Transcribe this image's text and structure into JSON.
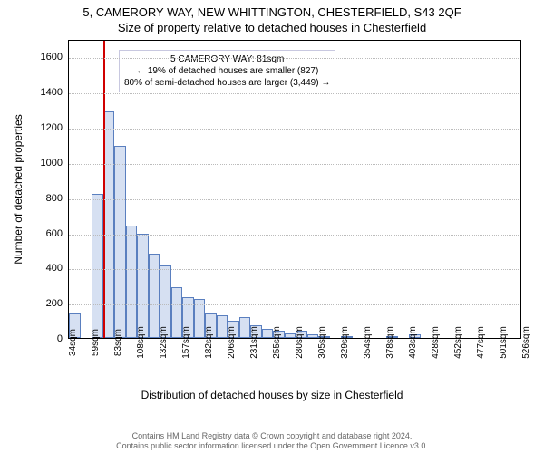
{
  "title_main": "5, CAMERORY WAY, NEW WHITTINGTON, CHESTERFIELD, S43 2QF",
  "title_sub": "Size of property relative to detached houses in Chesterfield",
  "chart": {
    "type": "histogram",
    "ylabel": "Number of detached properties",
    "xlabel": "Distribution of detached houses by size in Chesterfield",
    "ylim": [
      0,
      1700
    ],
    "ytick_step": 200,
    "yticks": [
      0,
      200,
      400,
      600,
      800,
      1000,
      1200,
      1400,
      1600
    ],
    "xticks": [
      "34sqm",
      "59sqm",
      "83sqm",
      "108sqm",
      "132sqm",
      "157sqm",
      "182sqm",
      "206sqm",
      "231sqm",
      "255sqm",
      "280sqm",
      "305sqm",
      "329sqm",
      "354sqm",
      "378sqm",
      "403sqm",
      "428sqm",
      "452sqm",
      "477sqm",
      "501sqm",
      "526sqm"
    ],
    "bins": 40,
    "values": [
      140,
      0,
      820,
      1290,
      1090,
      640,
      590,
      480,
      410,
      290,
      230,
      220,
      140,
      130,
      100,
      120,
      70,
      50,
      40,
      25,
      40,
      20,
      10,
      0,
      5,
      0,
      0,
      0,
      5,
      0,
      20,
      0,
      0,
      0,
      0,
      0,
      0,
      0,
      0,
      0
    ],
    "bar_fill": "#d6e0f2",
    "bar_stroke": "#5a7fbf",
    "marker_bin_index": 3,
    "marker_color": "#d00000",
    "grid_color": "#bbbbbb",
    "background_color": "#ffffff",
    "border_color": "#000000",
    "title_fontsize": 13,
    "label_fontsize": 12,
    "tick_fontsize": 11
  },
  "annotation": {
    "line1": "5 CAMERORY WAY: 81sqm",
    "line2": "← 19% of detached houses are smaller (827)",
    "line3": "80% of semi-detached houses are larger (3,449) →",
    "border_color": "#c8c8e0",
    "background_color": "#ffffff",
    "fontsize": 10
  },
  "footer": {
    "line1": "Contains HM Land Registry data © Crown copyright and database right 2024.",
    "line2": "Contains public sector information licensed under the Open Government Licence v3.0."
  }
}
